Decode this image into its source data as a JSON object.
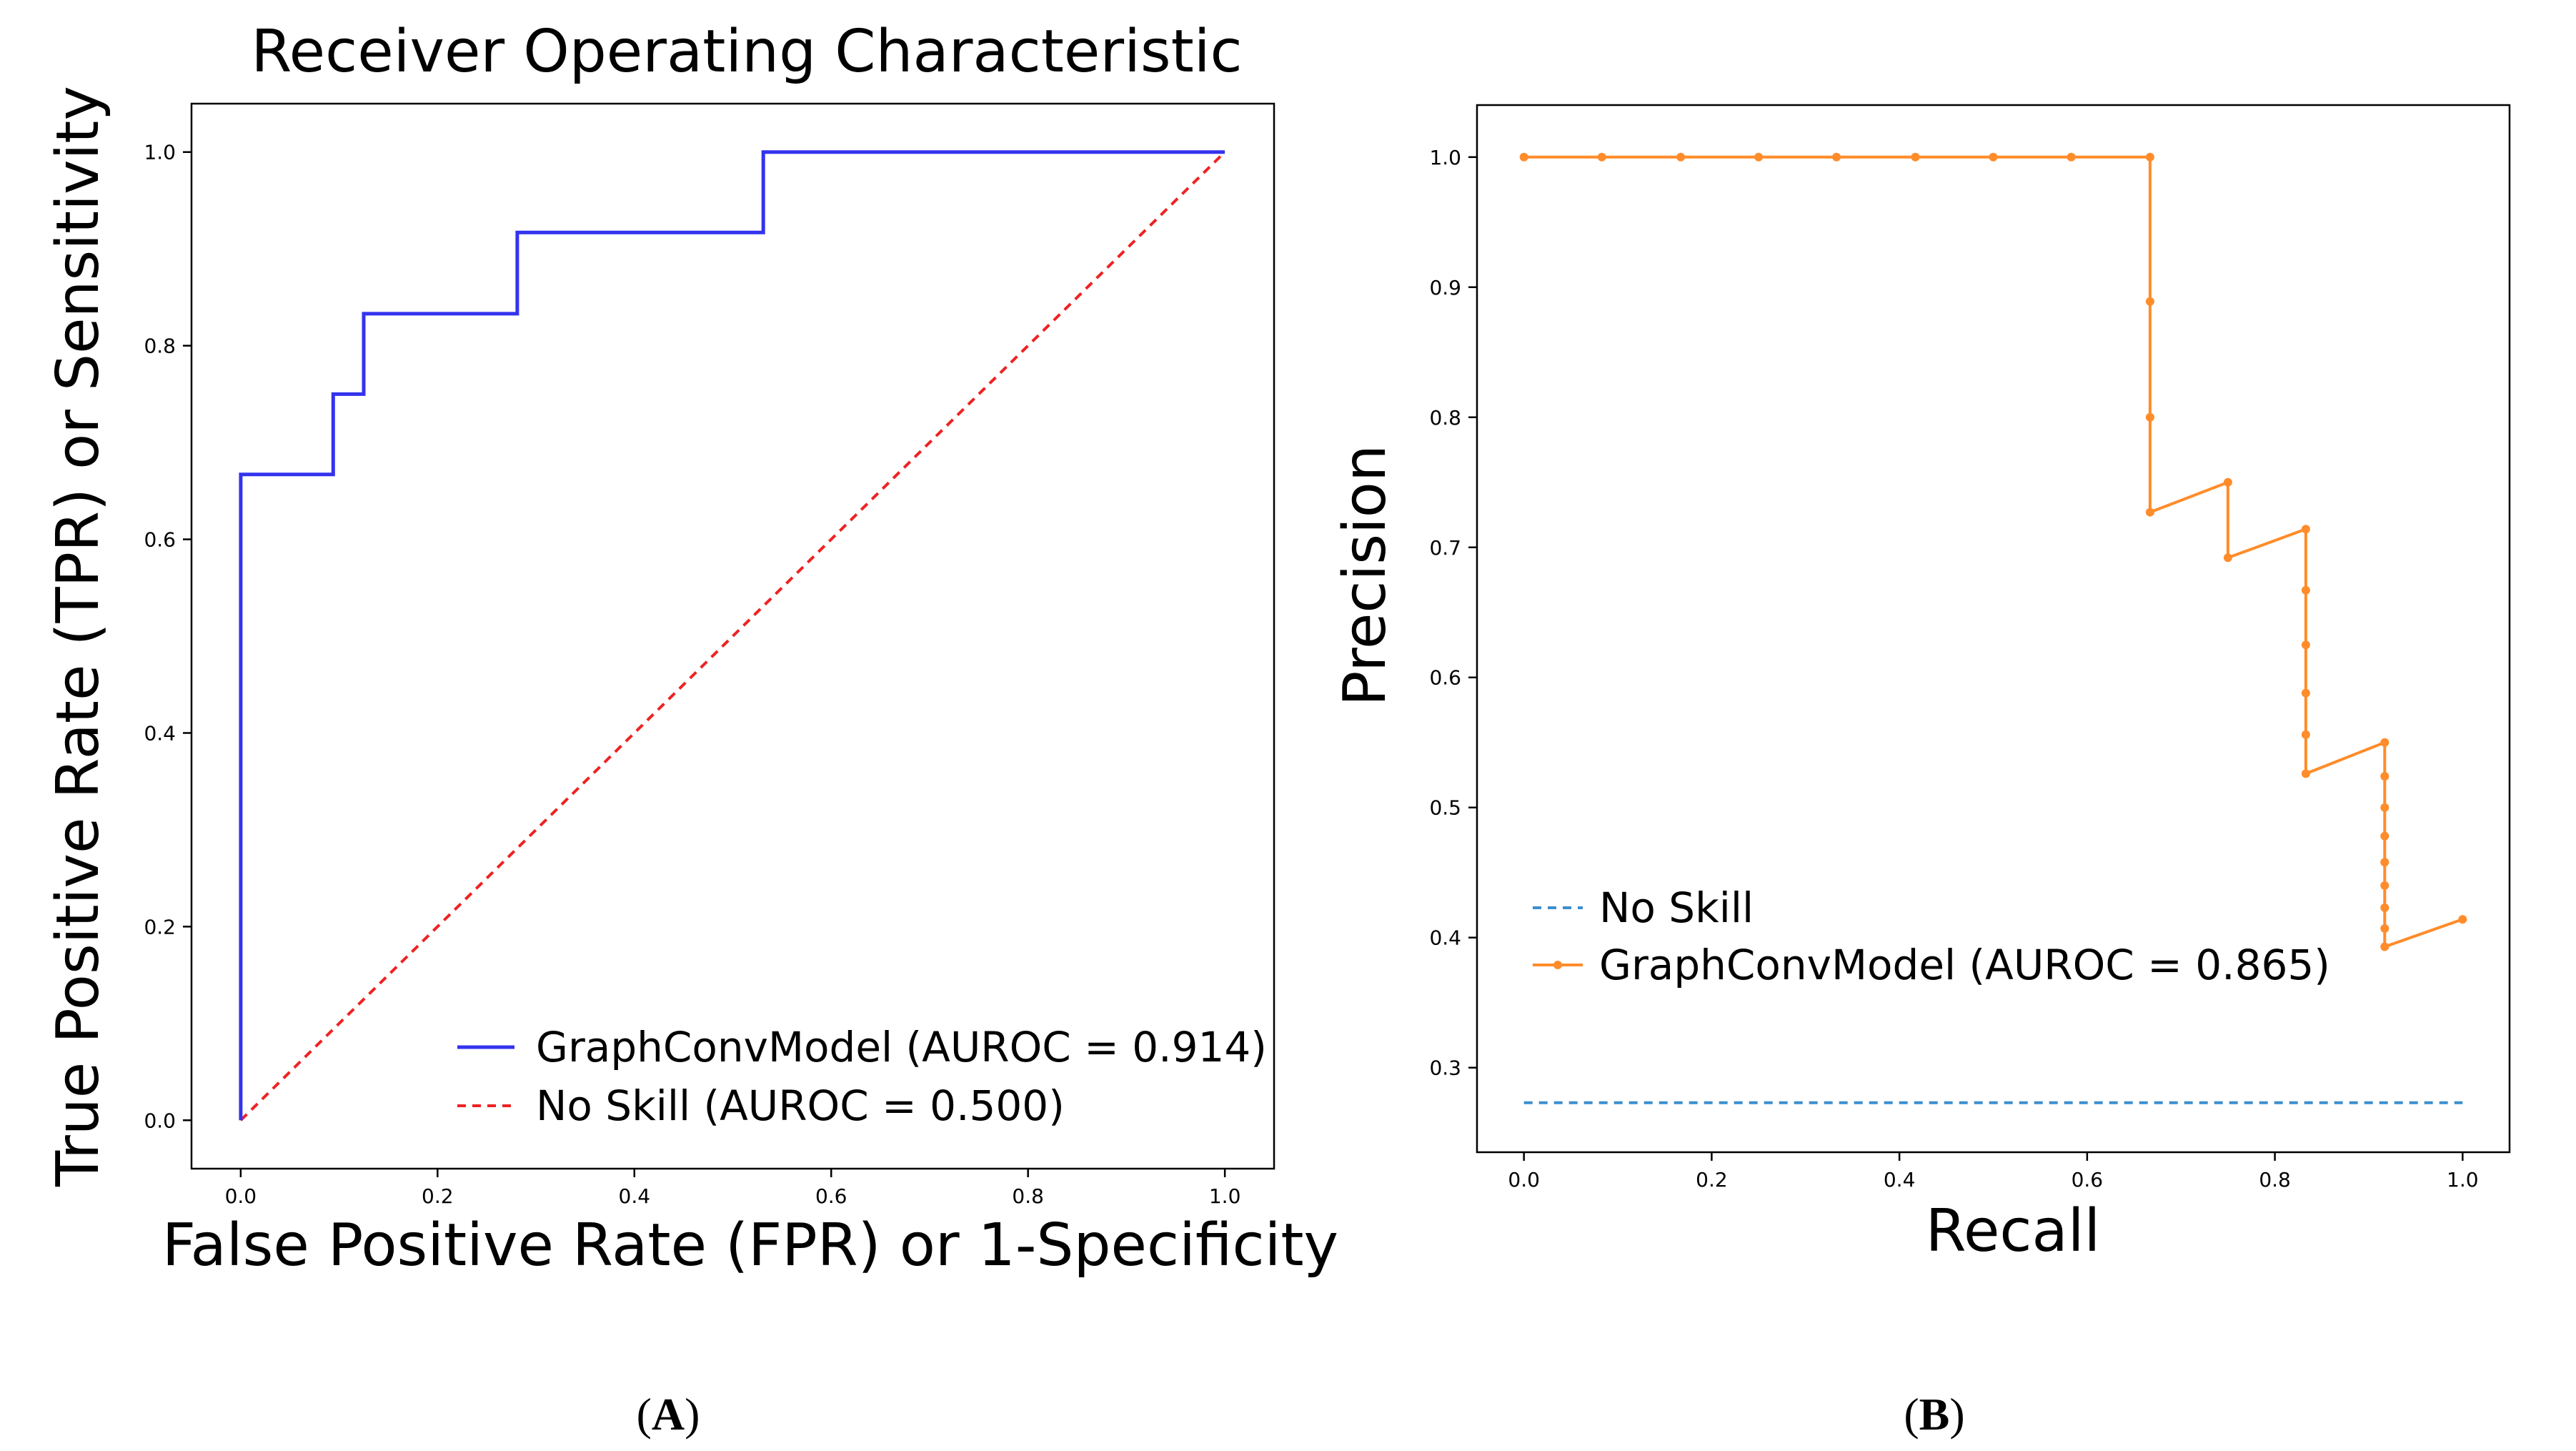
{
  "chart_data": [
    {
      "type": "line",
      "panel_label": "A",
      "title": "Receiver Operating Characteristic",
      "xlabel": "False Positive Rate (FPR) or 1-Specificity",
      "ylabel": "True Positive Rate (TPR) or Sensitivity",
      "xlim": [
        -0.05,
        1.05
      ],
      "ylim": [
        -0.05,
        1.05
      ],
      "xticks": [
        0.0,
        0.2,
        0.4,
        0.6,
        0.8,
        1.0
      ],
      "yticks": [
        0.0,
        0.2,
        0.4,
        0.6,
        0.8,
        1.0
      ],
      "xtick_labels": [
        "0.0",
        "0.2",
        "0.4",
        "0.6",
        "0.8",
        "1.0"
      ],
      "ytick_labels": [
        "0.0",
        "0.2",
        "0.4",
        "0.6",
        "0.8",
        "1.0"
      ],
      "legend_position": "lower-right",
      "series": [
        {
          "name": "GraphConvModel (AUROC = 0.914)",
          "color": "#3333ee",
          "style": "solid",
          "x": [
            0.0,
            0.0,
            0.094,
            0.094,
            0.125,
            0.125,
            0.281,
            0.281,
            0.531,
            0.531,
            1.0
          ],
          "y": [
            0.0,
            0.667,
            0.667,
            0.75,
            0.75,
            0.833,
            0.833,
            0.917,
            0.917,
            1.0,
            1.0
          ]
        },
        {
          "name": "No Skill (AUROC = 0.500)",
          "color": "#ee2222",
          "style": "dashed",
          "x": [
            0.0,
            1.0
          ],
          "y": [
            0.0,
            1.0
          ]
        }
      ]
    },
    {
      "type": "line",
      "panel_label": "B",
      "title": "",
      "xlabel": "Recall",
      "ylabel": "Precision",
      "xlim": [
        -0.05,
        1.05
      ],
      "ylim": [
        0.235,
        1.04
      ],
      "xticks": [
        0.0,
        0.2,
        0.4,
        0.6,
        0.8,
        1.0
      ],
      "yticks": [
        0.3,
        0.4,
        0.5,
        0.6,
        0.7,
        0.8,
        0.9,
        1.0
      ],
      "xtick_labels": [
        "0.0",
        "0.2",
        "0.4",
        "0.6",
        "0.8",
        "1.0"
      ],
      "ytick_labels": [
        "0.3",
        "0.4",
        "0.5",
        "0.6",
        "0.7",
        "0.8",
        "0.9",
        "1.0"
      ],
      "legend_position": "center-left",
      "series": [
        {
          "name": "No Skill",
          "color": "#3b8fcf",
          "style": "dashed",
          "x": [
            0.0,
            1.0
          ],
          "y": [
            0.273,
            0.273
          ]
        },
        {
          "name": "GraphConvModel (AUROC = 0.865)",
          "color": "#ff8c2a",
          "style": "solid-markers",
          "x": [
            0.0,
            0.083,
            0.167,
            0.25,
            0.333,
            0.417,
            0.5,
            0.583,
            0.667,
            0.667,
            0.667,
            0.667,
            0.75,
            0.75,
            0.833,
            0.833,
            0.833,
            0.833,
            0.833,
            0.833,
            0.917,
            0.917,
            0.917,
            0.917,
            0.917,
            0.917,
            0.917,
            0.917,
            0.917,
            1.0
          ],
          "y": [
            1.0,
            1.0,
            1.0,
            1.0,
            1.0,
            1.0,
            1.0,
            1.0,
            1.0,
            0.889,
            0.8,
            0.727,
            0.75,
            0.692,
            0.714,
            0.667,
            0.625,
            0.588,
            0.556,
            0.526,
            0.55,
            0.524,
            0.5,
            0.478,
            0.458,
            0.44,
            0.423,
            0.407,
            0.393,
            0.414
          ]
        }
      ]
    }
  ]
}
